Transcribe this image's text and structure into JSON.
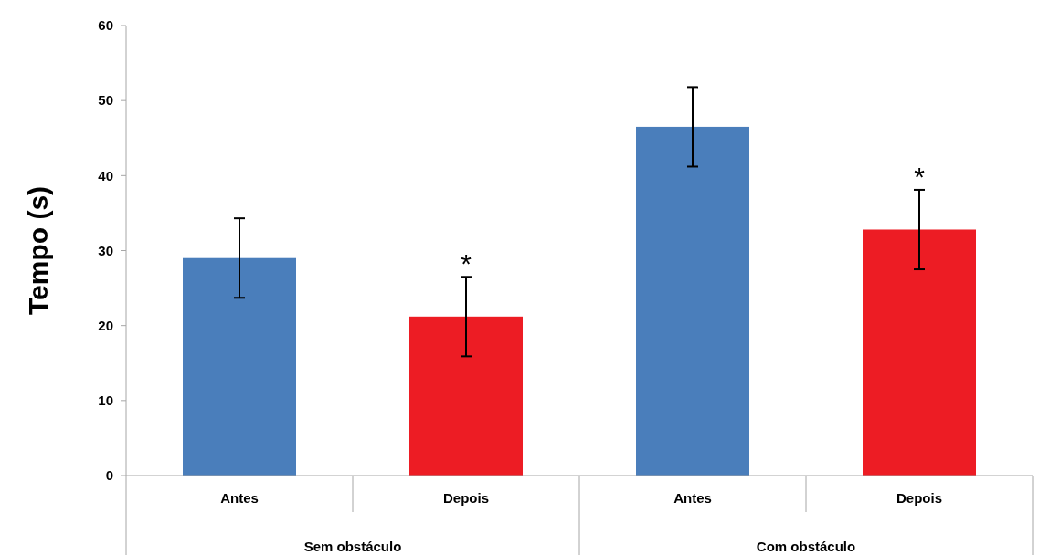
{
  "chart_data": {
    "type": "bar",
    "ylabel": "Tempo (s)",
    "categories": [
      "Antes",
      "Depois",
      "Antes",
      "Depois"
    ],
    "values": [
      29.0,
      21.2,
      46.5,
      32.8
    ],
    "colors": [
      "#4a7ebb",
      "#ed1c24",
      "#4a7ebb",
      "#ed1c24"
    ],
    "errors": [
      5.3,
      5.3,
      5.3,
      5.3
    ],
    "value_labels": [
      null,
      "*",
      null,
      "*"
    ],
    "annotations": [
      "Sem obstáculo",
      "Com obstáculo"
    ],
    "ylim": [
      0,
      60
    ],
    "yticks": [
      0,
      10,
      20,
      30,
      40,
      50,
      60
    ],
    "grid": false
  }
}
